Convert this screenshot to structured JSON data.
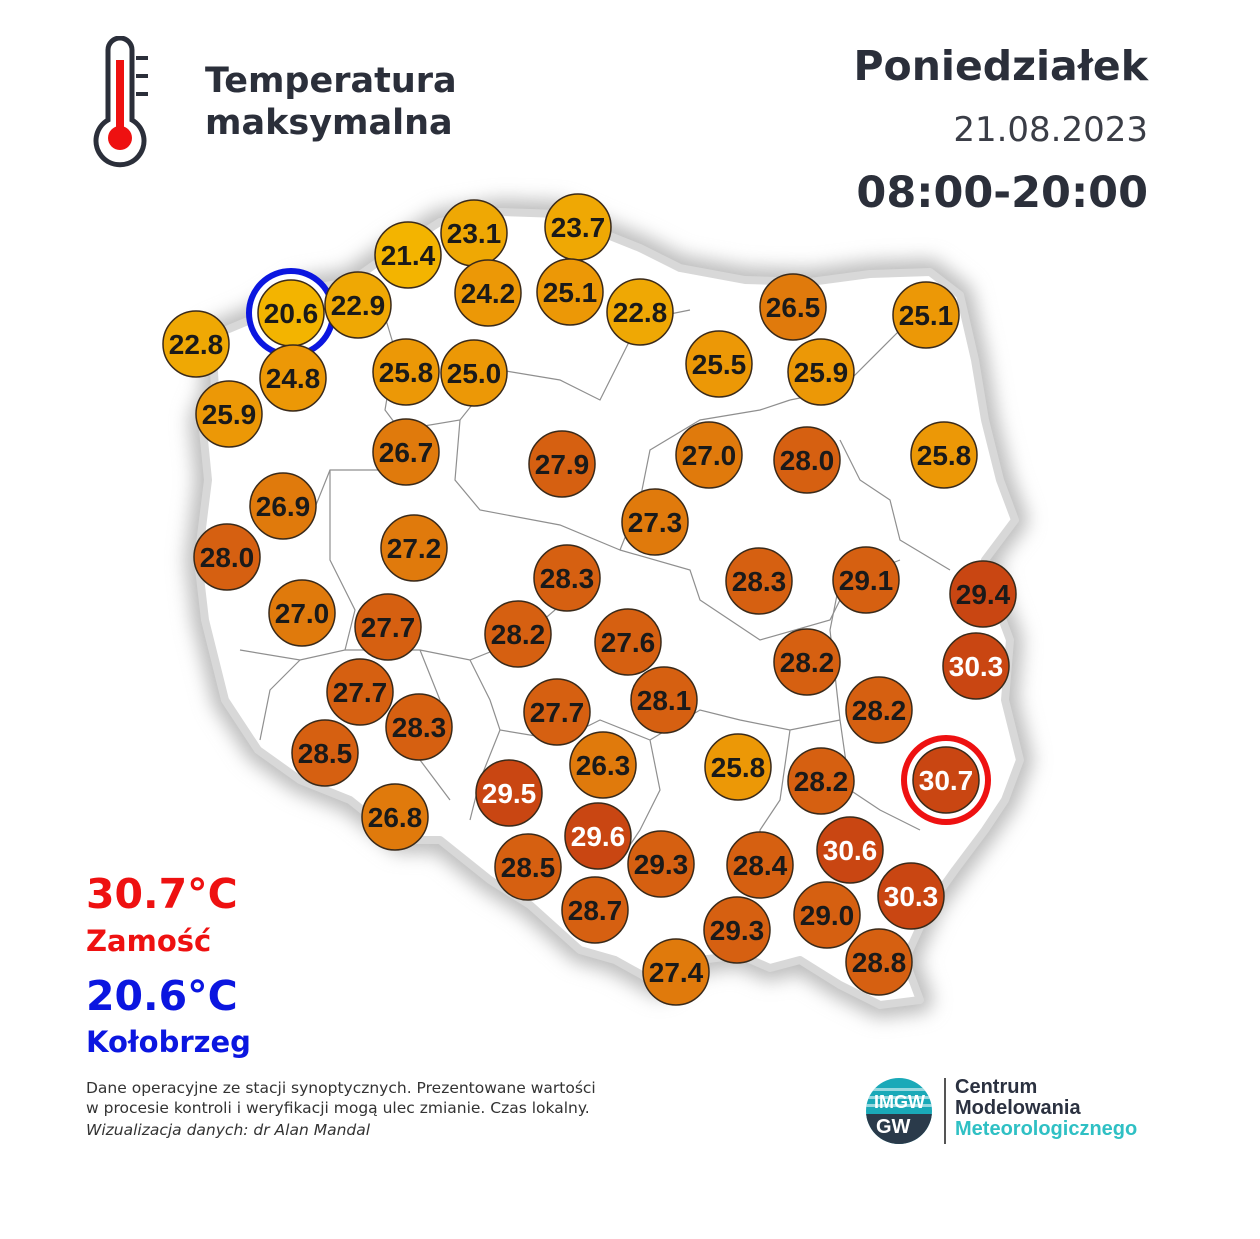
{
  "header": {
    "title_line1": "Temperatura",
    "title_line2": "maksymalna",
    "day": "Poniedziałek",
    "date": "21.08.2023",
    "hours": "08:00-20:00"
  },
  "extremes": {
    "max_value": "30.7°C",
    "max_place": "Zamość",
    "min_value": "20.6°C",
    "min_place": "Kołobrzeg"
  },
  "footnote": {
    "line1": "Dane operacyjne ze stacji synoptycznych. Prezentowane wartości",
    "line2": "w procesie kontroli i weryfikacji mogą ulec zmianie. Czas lokalny.",
    "credit": "Wizualizacja danych: dr Alan Mandal"
  },
  "logo": {
    "badge_top": "IMGW",
    "badge_bottom": "GW",
    "line1": "Centrum",
    "line2": "Modelowania",
    "line3": "Meteorologicznego"
  },
  "icons": [
    "thermometer-icon",
    "imgw-logo"
  ],
  "colors": {
    "scale": [
      "#f3b400",
      "#ec9806",
      "#e07a0c",
      "#d66011",
      "#c94612"
    ],
    "max_marker": "#ee1111",
    "min_marker": "#0b16e0"
  },
  "stations": [
    {
      "value": 20.6,
      "highlight": "min"
    },
    {
      "value": 22.9
    },
    {
      "value": 21.4
    },
    {
      "value": 23.1
    },
    {
      "value": 23.7
    },
    {
      "value": 24.2
    },
    {
      "value": 25.1
    },
    {
      "value": 22.8
    },
    {
      "value": 26.5
    },
    {
      "value": 25.1
    },
    {
      "value": 22.8
    },
    {
      "value": 24.8
    },
    {
      "value": 25.8
    },
    {
      "value": 25.0
    },
    {
      "value": 25.5
    },
    {
      "value": 25.9
    },
    {
      "value": 25.9
    },
    {
      "value": 26.7
    },
    {
      "value": 27.9
    },
    {
      "value": 27.0
    },
    {
      "value": 28.0
    },
    {
      "value": 25.8
    },
    {
      "value": 26.9
    },
    {
      "value": 27.3
    },
    {
      "value": 28.0
    },
    {
      "value": 27.2
    },
    {
      "value": 28.3
    },
    {
      "value": 28.3
    },
    {
      "value": 29.1
    },
    {
      "value": 29.4
    },
    {
      "value": 27.0
    },
    {
      "value": 27.7
    },
    {
      "value": 28.2
    },
    {
      "value": 27.6
    },
    {
      "value": 28.2
    },
    {
      "value": 30.3
    },
    {
      "value": 27.7
    },
    {
      "value": 28.3
    },
    {
      "value": 27.7
    },
    {
      "value": 28.1
    },
    {
      "value": 28.2
    },
    {
      "value": 28.5
    },
    {
      "value": 29.5
    },
    {
      "value": 26.3
    },
    {
      "value": 25.8
    },
    {
      "value": 28.2
    },
    {
      "value": 30.7,
      "highlight": "max"
    },
    {
      "value": 26.8
    },
    {
      "value": 29.6
    },
    {
      "value": 29.3
    },
    {
      "value": 28.4
    },
    {
      "value": 30.6
    },
    {
      "value": 28.5
    },
    {
      "value": 30.3
    },
    {
      "value": 28.7
    },
    {
      "value": 29.3
    },
    {
      "value": 29.0
    },
    {
      "value": 27.4
    },
    {
      "value": 28.8
    }
  ]
}
